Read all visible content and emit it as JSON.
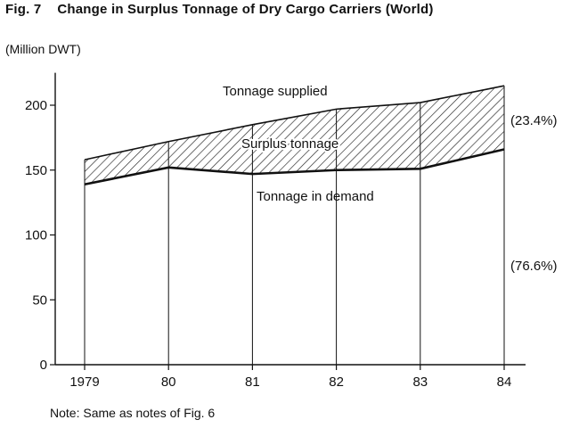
{
  "figure": {
    "number": "Fig. 7",
    "title": "Change in Surplus Tonnage of Dry Cargo Carriers (World)",
    "note": "Note: Same as notes of Fig. 6"
  },
  "chart_data": {
    "type": "area",
    "ylabel": "(Million DWT)",
    "xlabel": "",
    "categories": [
      "1979",
      "80",
      "81",
      "82",
      "83",
      "84"
    ],
    "ylim": [
      0,
      225
    ],
    "yticks": [
      0,
      50,
      100,
      150,
      200
    ],
    "grid": "vertical drop lines at each year",
    "series": [
      {
        "name": "Tonnage supplied",
        "values": [
          158,
          172,
          185,
          197,
          202,
          215
        ]
      },
      {
        "name": "Tonnage in demand",
        "values": [
          139,
          152,
          147,
          150,
          151,
          166
        ]
      }
    ],
    "band_label": "Surplus tonnage",
    "annotations": {
      "surplus_share": "(23.4%)",
      "demand_share": "(76.6%)"
    },
    "colors": {
      "line": "#111111",
      "hatch": "#222222",
      "background": "#ffffff"
    }
  }
}
